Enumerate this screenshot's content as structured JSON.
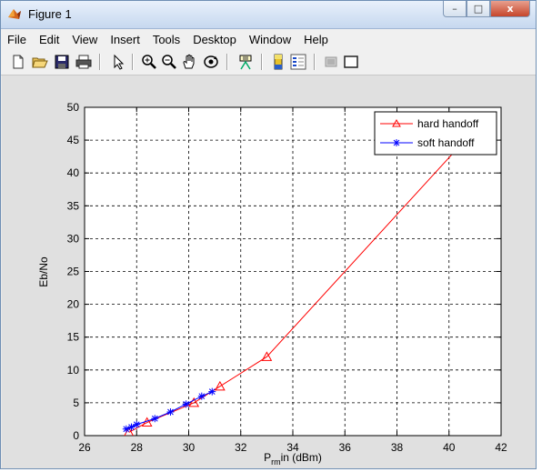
{
  "window": {
    "title": "Figure 1",
    "controls": {
      "minimize": "–",
      "maximize": "□",
      "close": "x"
    }
  },
  "menubar": {
    "items": [
      "File",
      "Edit",
      "View",
      "Insert",
      "Tools",
      "Desktop",
      "Window",
      "Help"
    ]
  },
  "toolbar": {
    "icons": [
      "new-figure-icon",
      "open-file-icon",
      "save-icon",
      "print-icon",
      "edit-plot-arrow-icon",
      "zoom-in-icon",
      "zoom-out-icon",
      "pan-hand-icon",
      "rotate-3d-icon",
      "data-cursor-icon",
      "colorbar-icon",
      "legend-icon",
      "hide-plot-tools-icon",
      "show-plot-tools-icon"
    ]
  },
  "colors": {
    "hard_handoff": "#ff0000",
    "soft_handoff": "#0000ff",
    "figure_bg": "#e0e0e0",
    "axes_bg": "#ffffff"
  },
  "chart_data": {
    "type": "line",
    "xlabel": {
      "main": "P",
      "sub": "rm",
      "rest": "in (dBm)"
    },
    "ylabel": "Eb/No",
    "xlim": [
      26,
      42
    ],
    "ylim": [
      0,
      50
    ],
    "xticks": [
      26,
      28,
      30,
      32,
      34,
      36,
      38,
      40,
      42
    ],
    "yticks": [
      0,
      5,
      10,
      15,
      20,
      25,
      30,
      35,
      40,
      45,
      50
    ],
    "grid": true,
    "legend_position": "top-right",
    "series": [
      {
        "name": "hard handoff",
        "marker": "triangle",
        "color": "#ff0000",
        "x": [
          27.7,
          28.4,
          30.2,
          31.2,
          33.0,
          40.5
        ],
        "y": [
          0.5,
          2.0,
          5.0,
          7.5,
          12.0,
          44.5
        ]
      },
      {
        "name": "soft handoff",
        "marker": "star",
        "color": "#0000ff",
        "x": [
          27.6,
          27.8,
          28.0,
          28.7,
          29.3,
          29.9,
          30.5,
          30.9
        ],
        "y": [
          1.0,
          1.3,
          1.7,
          2.6,
          3.6,
          4.8,
          6.0,
          6.7
        ]
      }
    ]
  }
}
